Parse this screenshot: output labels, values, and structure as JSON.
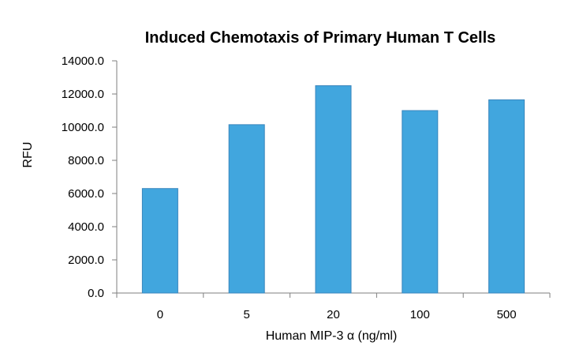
{
  "chart_data": {
    "type": "bar",
    "title": "Induced Chemotaxis of Primary Human T Cells",
    "xlabel": "Human MIP-3 α (ng/ml)",
    "ylabel": "RFU",
    "categories": [
      "0",
      "5",
      "20",
      "100",
      "500"
    ],
    "values": [
      6300,
      10150,
      12500,
      11000,
      11650
    ],
    "ylim": [
      0,
      14000
    ],
    "yticks": [
      "0.0",
      "2000.0",
      "4000.0",
      "6000.0",
      "8000.0",
      "10000.0",
      "12000.0",
      "14000.0"
    ],
    "bar_color": "#41a6de",
    "grid": false,
    "legend": "none"
  }
}
